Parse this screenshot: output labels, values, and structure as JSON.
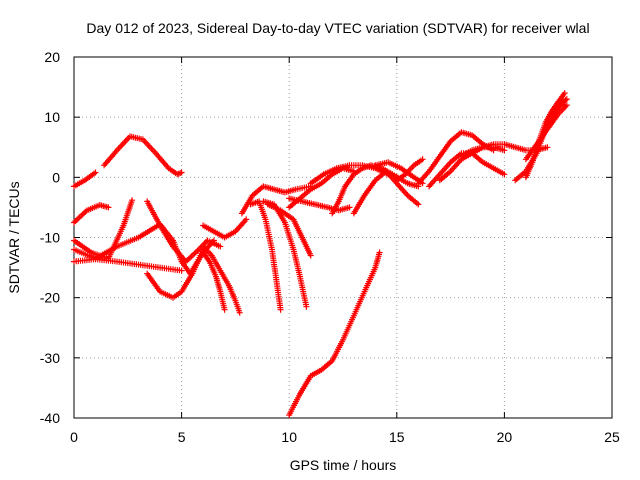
{
  "chart_data": {
    "type": "scatter",
    "title": "Day 012 of 2023, Sidereal Day-to-day VTEC variation (SDTVAR) for receiver wlal",
    "xlabel": "GPS time / hours",
    "ylabel": "SDTVAR / TECUs",
    "xlim": [
      0,
      25
    ],
    "ylim": [
      -40,
      20
    ],
    "xticks": [
      "0",
      "5",
      "10",
      "15",
      "20",
      "25"
    ],
    "yticks": [
      "-40",
      "-30",
      "-20",
      "-10",
      "0",
      "10",
      "20"
    ],
    "grid": true,
    "marker": "+",
    "color": "#ff0000",
    "series": [
      {
        "x": [
          0.0,
          0.5,
          1.0
        ],
        "y": [
          -1.5,
          -0.5,
          0.8
        ]
      },
      {
        "x": [
          1.4,
          2.0,
          2.6,
          3.2,
          3.8,
          4.4,
          4.8,
          5.0
        ],
        "y": [
          2.0,
          4.5,
          6.8,
          6.3,
          4.0,
          1.5,
          0.5,
          0.8
        ]
      },
      {
        "x": [
          0.0,
          0.6,
          1.2,
          1.6
        ],
        "y": [
          -7.5,
          -5.5,
          -4.6,
          -5.0
        ]
      },
      {
        "x": [
          0.0,
          1.0,
          2.0,
          3.0,
          4.0,
          5.0
        ],
        "y": [
          -14.0,
          -13.6,
          -14.0,
          -14.5,
          -15.0,
          -15.5
        ]
      },
      {
        "x": [
          0.0,
          0.8,
          1.6,
          2.3,
          2.7
        ],
        "y": [
          -10.5,
          -12.5,
          -13.5,
          -8.0,
          -3.8
        ]
      },
      {
        "x": [
          0.0,
          1.0,
          2.0,
          3.0,
          4.0,
          4.6,
          5.0,
          5.4,
          6.0,
          6.5
        ],
        "y": [
          -12.0,
          -13.5,
          -11.5,
          -10.0,
          -7.8,
          -10.5,
          -14.0,
          -16.0,
          -12.5,
          -10.5
        ]
      },
      {
        "x": [
          3.4,
          4.0,
          4.6,
          5.2,
          5.8,
          6.2,
          6.8
        ],
        "y": [
          -4.0,
          -8.0,
          -11.5,
          -14.0,
          -12.0,
          -10.5,
          -11.5
        ]
      },
      {
        "x": [
          3.4,
          4.0,
          4.6,
          5.0,
          5.5,
          6.0
        ],
        "y": [
          -16.0,
          -19.0,
          -20.0,
          -19.0,
          -16.0,
          -12.0
        ]
      },
      {
        "x": [
          6.0,
          6.4,
          6.8,
          7.2,
          7.5,
          7.7
        ],
        "y": [
          -11.5,
          -13.0,
          -15.5,
          -18.0,
          -20.5,
          -22.5
        ]
      },
      {
        "x": [
          6.0,
          6.3,
          6.6,
          6.8,
          7.0
        ],
        "y": [
          -12.5,
          -14.0,
          -16.5,
          -19.0,
          -22.0
        ]
      },
      {
        "x": [
          6.0,
          6.5,
          7.0,
          7.5,
          8.0
        ],
        "y": [
          -8.0,
          -9.0,
          -10.0,
          -9.0,
          -7.0
        ]
      },
      {
        "x": [
          7.8,
          8.3,
          8.8,
          9.3,
          9.8,
          10.3,
          11.0
        ],
        "y": [
          -6.0,
          -3.0,
          -1.5,
          -2.0,
          -2.5,
          -2.0,
          -1.5
        ]
      },
      {
        "x": [
          8.2,
          8.6,
          8.9,
          9.2,
          9.4,
          9.6
        ],
        "y": [
          -4.5,
          -4.0,
          -7.0,
          -12.0,
          -17.0,
          -22.0
        ]
      },
      {
        "x": [
          8.8,
          9.3,
          9.8,
          10.2,
          10.5,
          10.8
        ],
        "y": [
          -4.0,
          -4.5,
          -7.5,
          -12.0,
          -16.5,
          -21.5
        ]
      },
      {
        "x": [
          9.0,
          9.6,
          10.2,
          10.6,
          11.0
        ],
        "y": [
          -4.5,
          -5.5,
          -7.0,
          -10.0,
          -13.0
        ]
      },
      {
        "x": [
          10.0,
          10.5,
          11.0,
          11.5,
          12.0,
          12.5,
          13.0
        ],
        "y": [
          -5.0,
          -3.5,
          -2.0,
          -1.0,
          0.5,
          1.5,
          1.0
        ]
      },
      {
        "x": [
          10.0,
          10.6,
          11.2,
          11.8,
          12.3,
          12.8
        ],
        "y": [
          -3.5,
          -4.0,
          -4.5,
          -5.0,
          -5.5,
          -5.0
        ]
      },
      {
        "x": [
          10.0,
          10.5,
          11.0,
          11.5,
          12.0,
          12.5,
          13.0,
          13.5,
          14.0,
          14.2
        ],
        "y": [
          -39.5,
          -36.0,
          -33.0,
          -32.0,
          -30.5,
          -27.0,
          -23.0,
          -19.0,
          -15.0,
          -12.5
        ]
      },
      {
        "x": [
          11.0,
          11.6,
          12.2,
          12.8,
          13.4,
          14.0,
          14.6,
          15.0
        ],
        "y": [
          -1.0,
          0.5,
          1.5,
          2.0,
          2.0,
          1.5,
          0.5,
          0.0
        ]
      },
      {
        "x": [
          12.0,
          12.3,
          12.6,
          13.0,
          13.4,
          13.8,
          14.3,
          14.8,
          15.5,
          16.0
        ],
        "y": [
          -6.0,
          -4.0,
          -1.5,
          0.5,
          1.5,
          2.0,
          1.5,
          0.5,
          -1.0,
          -1.5
        ]
      },
      {
        "x": [
          13.0,
          13.5,
          14.0,
          14.5,
          15.0,
          15.5,
          16.0
        ],
        "y": [
          -6.0,
          -3.0,
          -0.5,
          1.0,
          -1.0,
          -3.0,
          -4.5
        ]
      },
      {
        "x": [
          14.0,
          14.6,
          15.2,
          15.8,
          16.2
        ],
        "y": [
          2.0,
          2.5,
          1.5,
          0.0,
          -1.0
        ]
      },
      {
        "x": [
          15.0,
          15.4,
          15.8,
          16.2
        ],
        "y": [
          -0.5,
          0.5,
          2.0,
          3.0
        ]
      },
      {
        "x": [
          16.0,
          16.5,
          17.0,
          17.5,
          18.0,
          18.5,
          19.0,
          19.5
        ],
        "y": [
          -1.0,
          1.0,
          3.5,
          6.0,
          7.5,
          7.0,
          5.5,
          4.5
        ]
      },
      {
        "x": [
          16.5,
          17.0,
          17.5,
          18.0,
          18.5,
          19.0,
          19.5,
          20.0
        ],
        "y": [
          -1.5,
          0.5,
          2.5,
          4.0,
          4.0,
          2.5,
          1.5,
          0.5
        ]
      },
      {
        "x": [
          17.0,
          17.5,
          18.0,
          18.5,
          19.0,
          19.5,
          20.0
        ],
        "y": [
          -0.5,
          1.0,
          3.0,
          4.0,
          5.0,
          5.0,
          4.5
        ]
      },
      {
        "x": [
          18.0,
          18.5,
          19.0,
          19.5,
          20.0,
          20.5,
          21.0,
          21.5,
          22.0
        ],
        "y": [
          3.5,
          4.5,
          5.0,
          5.5,
          5.5,
          5.0,
          4.5,
          4.5,
          5.0
        ]
      },
      {
        "x": [
          20.5,
          21.0,
          21.5,
          22.0,
          22.4,
          22.8
        ],
        "y": [
          -0.5,
          1.0,
          4.0,
          9.0,
          12.0,
          14.0
        ]
      },
      {
        "x": [
          21.0,
          21.3,
          21.6,
          21.9,
          22.2,
          22.5,
          22.8
        ],
        "y": [
          0.0,
          2.5,
          6.0,
          9.0,
          11.0,
          12.5,
          12.0
        ]
      },
      {
        "x": [
          21.5,
          21.8,
          22.1,
          22.4,
          22.7,
          22.9
        ],
        "y": [
          5.0,
          7.0,
          9.5,
          11.0,
          12.5,
          13.0
        ]
      },
      {
        "x": [
          21.0,
          21.5,
          22.0,
          22.5,
          22.9
        ],
        "y": [
          3.0,
          5.5,
          8.0,
          10.5,
          12.0
        ]
      }
    ]
  }
}
